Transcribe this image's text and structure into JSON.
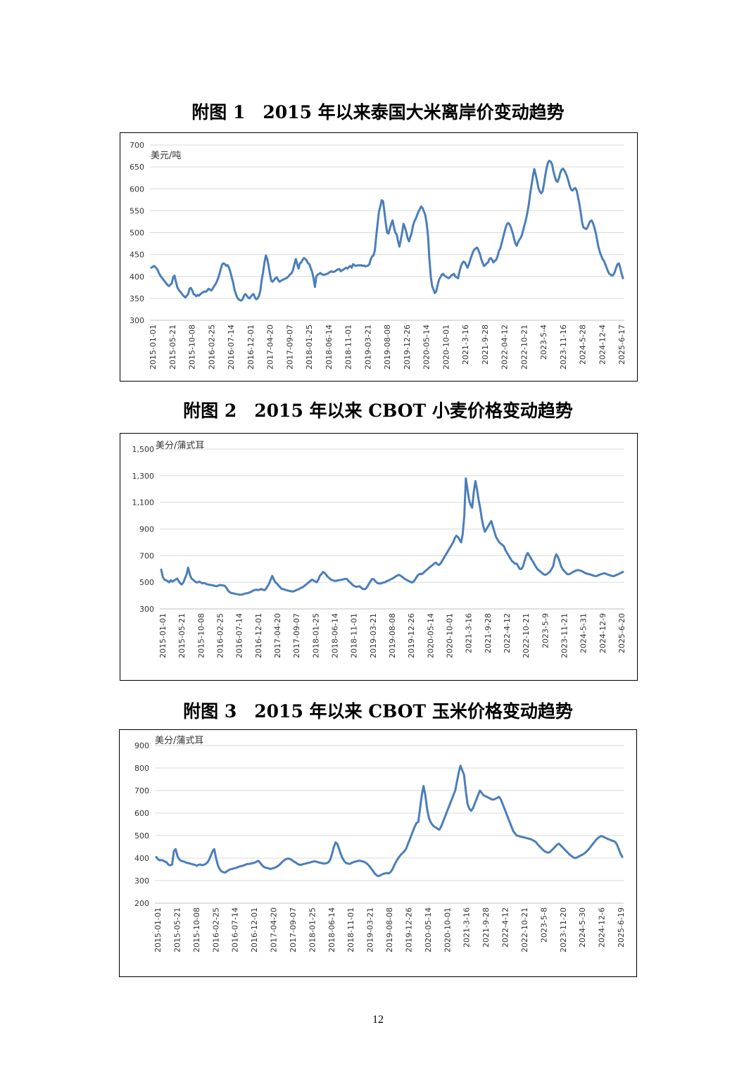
{
  "page_number": "12",
  "chart_data": [
    {
      "type": "line",
      "title": "附图 1　2015 年以来泰国大米离岸价变动趋势",
      "unit_label": "美元/吨",
      "ylim": [
        300,
        700
      ],
      "yticks": [
        "300",
        "350",
        "400",
        "450",
        "500",
        "550",
        "600",
        "650",
        "700"
      ],
      "grid": true,
      "legend": "none",
      "line_color": "#4a7ebb",
      "x_tick_labels": [
        "2015-01-01",
        "2015-05-21",
        "2015-10-08",
        "2016-02-25",
        "2016-07-14",
        "2016-12-01",
        "2017-04-20",
        "2017-09-07",
        "2018-01-25",
        "2018-06-14",
        "2018-11-01",
        "2019-03-21",
        "2019-08-08",
        "2019-12-26",
        "2020-05-14",
        "2020-10-01",
        "2021-3-16",
        "2021-9-28",
        "2022-04-12",
        "2022-10-21",
        "2023-5-4",
        "2023-11-16",
        "2024-5-28",
        "2024-12-4",
        "2025-6-17"
      ],
      "series": [
        {
          "values": [
            420,
            422,
            424,
            421,
            418,
            412,
            405,
            400,
            396,
            392,
            388,
            384,
            380,
            378,
            382,
            384,
            398,
            402,
            388,
            376,
            370,
            366,
            362,
            358,
            355,
            352,
            356,
            360,
            372,
            374,
            368,
            360,
            358,
            355,
            358,
            356,
            360,
            362,
            364,
            366,
            365,
            368,
            372,
            370,
            368,
            372,
            378,
            382,
            388,
            396,
            406,
            418,
            428,
            430,
            428,
            424,
            426,
            420,
            410,
            398,
            386,
            370,
            360,
            352,
            348,
            346,
            345,
            348,
            356,
            360,
            356,
            352,
            350,
            354,
            358,
            360,
            352,
            348,
            350,
            356,
            368,
            392,
            410,
            432,
            448,
            440,
            425,
            405,
            390,
            388,
            392,
            396,
            398,
            392,
            388,
            390,
            392,
            393,
            395,
            396,
            398,
            402,
            405,
            408,
            416,
            428,
            440,
            428,
            418,
            430,
            432,
            438,
            442,
            440,
            436,
            430,
            428,
            418,
            410,
            396,
            376,
            400,
            404,
            406,
            408,
            405,
            404,
            404,
            405,
            406,
            408,
            410,
            412,
            410,
            411,
            412,
            415,
            416,
            417,
            412,
            414,
            416,
            418,
            420,
            418,
            422,
            424,
            420,
            428,
            426,
            424,
            425,
            426,
            425,
            426,
            424,
            425,
            423,
            424,
            425,
            428,
            440,
            446,
            448,
            460,
            492,
            520,
            548,
            560,
            574,
            572,
            548,
            520,
            500,
            498,
            510,
            520,
            528,
            512,
            500,
            496,
            480,
            468,
            484,
            500,
            520,
            512,
            502,
            488,
            480,
            490,
            500,
            516,
            526,
            532,
            540,
            548,
            554,
            560,
            556,
            548,
            540,
            520,
            492,
            440,
            400,
            378,
            370,
            362,
            366,
            380,
            392,
            398,
            404,
            406,
            402,
            400,
            398,
            396,
            398,
            402,
            404,
            406,
            400,
            398,
            396,
            410,
            422,
            430,
            434,
            432,
            426,
            420,
            428,
            438,
            448,
            456,
            462,
            464,
            466,
            460,
            452,
            440,
            432,
            424,
            426,
            430,
            432,
            440,
            442,
            438,
            432,
            436,
            438,
            446,
            458,
            464,
            476,
            488,
            500,
            512,
            520,
            522,
            518,
            510,
            500,
            488,
            476,
            470,
            478,
            484,
            488,
            496,
            508,
            520,
            532,
            548,
            566,
            590,
            610,
            630,
            645,
            632,
            618,
            602,
            594,
            590,
            594,
            610,
            630,
            648,
            660,
            664,
            662,
            656,
            640,
            628,
            618,
            616,
            624,
            636,
            644,
            646,
            642,
            636,
            628,
            618,
            606,
            598,
            596,
            600,
            602,
            596,
            582,
            566,
            546,
            524,
            512,
            510,
            508,
            512,
            520,
            526,
            528,
            522,
            512,
            500,
            484,
            468,
            456,
            448,
            440,
            436,
            428,
            420,
            412,
            406,
            404,
            402,
            404,
            410,
            420,
            428,
            430,
            420,
            406,
            396
          ]
        }
      ]
    },
    {
      "type": "line",
      "title": "附图 2　2015 年以来 CBOT 小麦价格变动趋势",
      "unit_label": "美分/蒲式耳",
      "ylim": [
        300,
        1500
      ],
      "yticks": [
        "300",
        "500",
        "700",
        "900",
        "1,100",
        "1,300",
        "1,500"
      ],
      "grid": true,
      "legend": "none",
      "line_color": "#4a7ebb",
      "x_tick_labels": [
        "2015-01-01",
        "2015-05-21",
        "2015-10-08",
        "2016-02-25",
        "2016-07-14",
        "2016-12-01",
        "2017-04-20",
        "2017-09-07",
        "2018-01-25",
        "2018-06-14",
        "2018-11-01",
        "2019-03-21",
        "2019-08-08",
        "2019-12-26",
        "2020-05-14",
        "2020-10-01",
        "2021-3-16",
        "2021-9-28",
        "2022-4-12",
        "2022-10-21",
        "2023-5-9",
        "2023-11-21",
        "2024-5-31",
        "2024-12-9",
        "2025-6-20"
      ],
      "series": [
        {
          "values": [
            595,
            540,
            520,
            515,
            510,
            500,
            515,
            505,
            512,
            520,
            528,
            510,
            492,
            484,
            500,
            530,
            560,
            610,
            560,
            530,
            520,
            510,
            500,
            500,
            505,
            498,
            492,
            495,
            490,
            485,
            482,
            480,
            478,
            476,
            472,
            470,
            475,
            480,
            478,
            476,
            474,
            460,
            440,
            428,
            420,
            418,
            415,
            412,
            410,
            408,
            406,
            408,
            412,
            415,
            418,
            420,
            425,
            430,
            438,
            442,
            445,
            440,
            445,
            450,
            445,
            440,
            450,
            470,
            490,
            520,
            548,
            520,
            500,
            490,
            475,
            462,
            450,
            448,
            445,
            440,
            438,
            435,
            432,
            430,
            435,
            440,
            445,
            450,
            458,
            462,
            470,
            480,
            490,
            500,
            510,
            520,
            514,
            506,
            500,
            520,
            548,
            562,
            578,
            570,
            556,
            540,
            530,
            520,
            515,
            512,
            510,
            514,
            515,
            518,
            520,
            522,
            526,
            524,
            510,
            500,
            488,
            476,
            470,
            466,
            468,
            470,
            460,
            450,
            448,
            452,
            470,
            490,
            510,
            525,
            522,
            508,
            496,
            492,
            490,
            494,
            498,
            500,
            508,
            512,
            518,
            524,
            530,
            538,
            546,
            552,
            556,
            548,
            540,
            530,
            522,
            516,
            510,
            504,
            498,
            504,
            520,
            540,
            556,
            564,
            560,
            568,
            580,
            590,
            600,
            612,
            620,
            630,
            640,
            648,
            636,
            630,
            640,
            660,
            680,
            700,
            720,
            740,
            760,
            780,
            800,
            830,
            850,
            840,
            820,
            800,
            860,
            1000,
            1280,
            1200,
            1120,
            1080,
            1060,
            1180,
            1260,
            1200,
            1120,
            1060,
            980,
            920,
            880,
            900,
            920,
            940,
            960,
            920,
            880,
            840,
            820,
            800,
            790,
            780,
            770,
            740,
            720,
            700,
            680,
            660,
            650,
            640,
            640,
            620,
            600,
            600,
            620,
            660,
            700,
            720,
            700,
            680,
            660,
            640,
            620,
            600,
            590,
            580,
            570,
            560,
            556,
            560,
            570,
            580,
            600,
            620,
            680,
            710,
            690,
            660,
            620,
            600,
            584,
            572,
            560,
            560,
            566,
            574,
            580,
            586,
            590,
            592,
            588,
            584,
            578,
            570,
            566,
            562,
            560,
            556,
            552,
            548,
            546,
            550,
            556,
            560,
            564,
            568,
            566,
            560,
            556,
            552,
            548,
            546,
            550,
            556,
            560,
            566,
            572,
            578
          ]
        }
      ]
    },
    {
      "type": "line",
      "title": "附图 3　2015 年以来 CBOT 玉米价格变动趋势",
      "unit_label": "美分/蒲式耳",
      "ylim": [
        200,
        900
      ],
      "yticks": [
        "200",
        "300",
        "400",
        "500",
        "600",
        "700",
        "800",
        "900"
      ],
      "grid": true,
      "legend": "none",
      "line_color": "#4a7ebb",
      "x_tick_labels": [
        "2015-01-01",
        "2015-05-21",
        "2015-10-08",
        "2016-02-25",
        "2016-07-14",
        "2016-12-01",
        "2017-04-20",
        "2017-09-07",
        "2018-01-25",
        "2018-06-14",
        "2018-11-01",
        "2019-03-21",
        "2019-08-08",
        "2019-12-26",
        "2020-05-14",
        "2020-10-01",
        "2021-3-16",
        "2021-9-28",
        "2022-4-12",
        "2022-10-21",
        "2023-5-8",
        "2023-11-20",
        "2024-5-30",
        "2024-12-6",
        "2025-6-19"
      ],
      "series": [
        {
          "values": [
            405,
            395,
            390,
            392,
            388,
            385,
            380,
            370,
            368,
            372,
            430,
            440,
            410,
            395,
            388,
            386,
            384,
            380,
            378,
            376,
            374,
            372,
            370,
            366,
            370,
            372,
            368,
            370,
            374,
            380,
            392,
            410,
            430,
            440,
            400,
            370,
            352,
            342,
            338,
            336,
            340,
            346,
            350,
            352,
            354,
            356,
            358,
            362,
            364,
            366,
            368,
            372,
            374,
            374,
            376,
            378,
            380,
            384,
            388,
            380,
            370,
            362,
            358,
            356,
            354,
            352,
            354,
            356,
            360,
            364,
            370,
            378,
            386,
            392,
            396,
            398,
            396,
            392,
            386,
            382,
            376,
            372,
            370,
            372,
            374,
            376,
            378,
            380,
            382,
            384,
            386,
            384,
            382,
            380,
            378,
            376,
            376,
            378,
            382,
            394,
            420,
            450,
            470,
            462,
            440,
            416,
            398,
            386,
            378,
            376,
            374,
            378,
            382,
            384,
            386,
            388,
            388,
            386,
            384,
            380,
            374,
            366,
            356,
            346,
            334,
            326,
            320,
            322,
            326,
            330,
            332,
            334,
            332,
            336,
            346,
            362,
            378,
            392,
            404,
            414,
            422,
            430,
            440,
            460,
            480,
            500,
            520,
            540,
            556,
            560,
            620,
            680,
            720,
            680,
            620,
            580,
            560,
            548,
            540,
            536,
            530,
            526,
            540,
            560,
            580,
            600,
            620,
            640,
            660,
            680,
            700,
            740,
            780,
            810,
            790,
            770,
            700,
            640,
            620,
            610,
            620,
            640,
            660,
            680,
            700,
            690,
            680,
            676,
            672,
            668,
            664,
            660,
            660,
            664,
            668,
            672,
            660,
            640,
            620,
            600,
            580,
            560,
            540,
            520,
            510,
            500,
            498,
            496,
            494,
            492,
            490,
            488,
            486,
            484,
            480,
            476,
            470,
            460,
            452,
            444,
            436,
            430,
            426,
            424,
            428,
            436,
            444,
            452,
            460,
            464,
            456,
            448,
            440,
            432,
            424,
            416,
            410,
            404,
            400,
            402,
            406,
            410,
            414,
            418,
            424,
            432,
            440,
            450,
            460,
            470,
            480,
            488,
            494,
            498,
            496,
            492,
            488,
            484,
            482,
            478,
            476,
            472,
            460,
            440,
            420,
            406
          ]
        }
      ]
    }
  ]
}
